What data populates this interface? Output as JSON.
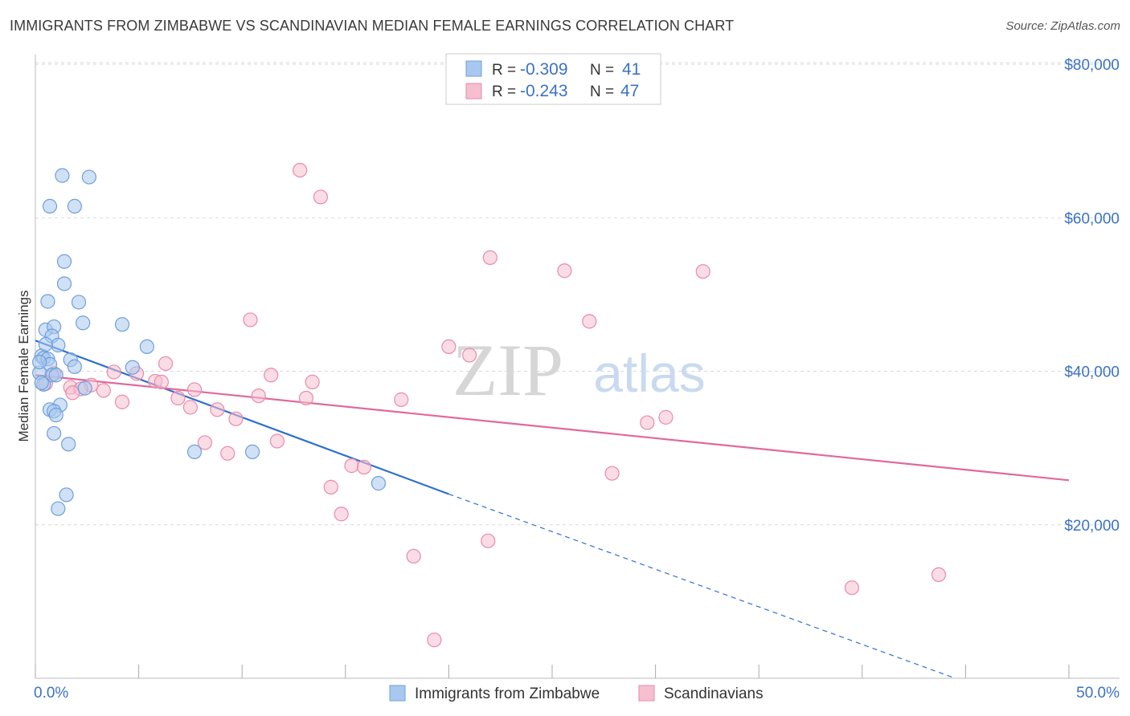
{
  "title": "IMMIGRANTS FROM ZIMBABWE VS SCANDINAVIAN MEDIAN FEMALE EARNINGS CORRELATION CHART",
  "source": "Source: ZipAtlas.com",
  "watermark": {
    "zip": "ZIP",
    "atlas": "atlas"
  },
  "colors": {
    "blue_fill": "#a9c8ef",
    "blue_stroke": "#6d9fdc",
    "blue_line": "#2f6fce",
    "pink_fill": "#f5bfd0",
    "pink_stroke": "#e98aa9",
    "pink_line": "#e0699a",
    "tick_text": "#3b72c4",
    "grid": "#d9d9d9"
  },
  "chart_data": {
    "type": "scatter",
    "title": "IMMIGRANTS FROM ZIMBABWE VS SCANDINAVIAN MEDIAN FEMALE EARNINGS CORRELATION CHART",
    "xlabel": "",
    "ylabel": "Median Female Earnings",
    "xlim": [
      0,
      50
    ],
    "ylim": [
      0,
      80000
    ],
    "x_tick_labels": [
      "0.0%",
      "50.0%"
    ],
    "y_ticks": [
      20000,
      40000,
      60000,
      80000
    ],
    "y_tick_labels": [
      "$20,000",
      "$40,000",
      "$60,000",
      "$80,000"
    ],
    "grid": true,
    "legend_position": "top-center",
    "legend_stats": [
      {
        "r_label": "R =",
        "r": "-0.309",
        "n_label": "N =",
        "n": "41"
      },
      {
        "r_label": "R =",
        "r": "-0.243",
        "n_label": "N =",
        "n": "47"
      }
    ],
    "series": [
      {
        "name": "Immigrants from Zimbabwe",
        "points": [
          [
            1.3,
            65500
          ],
          [
            2.6,
            65300
          ],
          [
            0.7,
            61500
          ],
          [
            1.9,
            61500
          ],
          [
            1.4,
            54300
          ],
          [
            1.4,
            51400
          ],
          [
            0.6,
            49100
          ],
          [
            2.1,
            49000
          ],
          [
            2.3,
            46300
          ],
          [
            4.2,
            46100
          ],
          [
            0.5,
            45400
          ],
          [
            0.9,
            45800
          ],
          [
            0.8,
            44600
          ],
          [
            1.1,
            43400
          ],
          [
            5.4,
            43200
          ],
          [
            0.3,
            42000
          ],
          [
            0.4,
            41700
          ],
          [
            0.6,
            41600
          ],
          [
            1.7,
            41500
          ],
          [
            0.7,
            40900
          ],
          [
            1.9,
            40600
          ],
          [
            4.7,
            40500
          ],
          [
            0.2,
            39800
          ],
          [
            0.8,
            39500
          ],
          [
            1.0,
            39500
          ],
          [
            0.4,
            38300
          ],
          [
            2.4,
            37800
          ],
          [
            1.2,
            35600
          ],
          [
            0.7,
            35000
          ],
          [
            0.9,
            34800
          ],
          [
            1.0,
            34300
          ],
          [
            0.9,
            31900
          ],
          [
            1.6,
            30500
          ],
          [
            7.7,
            29500
          ],
          [
            10.5,
            29500
          ],
          [
            16.6,
            25400
          ],
          [
            1.5,
            23900
          ],
          [
            1.1,
            22100
          ],
          [
            0.3,
            38500
          ],
          [
            0.2,
            41200
          ],
          [
            0.5,
            43500
          ]
        ],
        "trend": {
          "x0": 0,
          "y0": 44000,
          "x1": 20,
          "y1": 24000,
          "dash_to_x": 44.5,
          "dash_to_y": 0
        }
      },
      {
        "name": "Scandinavians",
        "points": [
          [
            12.8,
            66200
          ],
          [
            13.8,
            62700
          ],
          [
            22.0,
            54800
          ],
          [
            25.6,
            53100
          ],
          [
            32.3,
            53000
          ],
          [
            10.4,
            46700
          ],
          [
            26.8,
            46500
          ],
          [
            20.0,
            43200
          ],
          [
            21.0,
            42100
          ],
          [
            6.3,
            41000
          ],
          [
            3.8,
            39900
          ],
          [
            4.9,
            39700
          ],
          [
            11.4,
            39500
          ],
          [
            5.8,
            38700
          ],
          [
            13.4,
            38600
          ],
          [
            6.1,
            38600
          ],
          [
            2.7,
            38200
          ],
          [
            1.7,
            37900
          ],
          [
            2.2,
            37700
          ],
          [
            3.3,
            37500
          ],
          [
            7.7,
            37600
          ],
          [
            1.8,
            37200
          ],
          [
            10.8,
            36800
          ],
          [
            6.9,
            36500
          ],
          [
            13.1,
            36500
          ],
          [
            17.7,
            36300
          ],
          [
            4.2,
            36000
          ],
          [
            7.5,
            35300
          ],
          [
            8.8,
            35000
          ],
          [
            9.7,
            33800
          ],
          [
            30.5,
            34000
          ],
          [
            29.6,
            33300
          ],
          [
            8.2,
            30700
          ],
          [
            11.7,
            30900
          ],
          [
            9.3,
            29300
          ],
          [
            15.3,
            27700
          ],
          [
            15.9,
            27500
          ],
          [
            27.9,
            26700
          ],
          [
            14.3,
            24900
          ],
          [
            14.8,
            21400
          ],
          [
            21.9,
            17900
          ],
          [
            18.3,
            15900
          ],
          [
            39.5,
            11800
          ],
          [
            43.7,
            13500
          ],
          [
            19.3,
            5000
          ],
          [
            0.5,
            38400
          ],
          [
            0.9,
            39700
          ]
        ],
        "trend": {
          "x0": 0,
          "y0": 39500,
          "x1": 50,
          "y1": 25800
        }
      }
    ]
  }
}
